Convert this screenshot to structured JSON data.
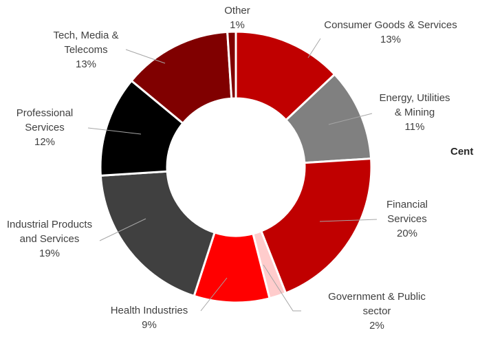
{
  "chart_data": {
    "type": "donut",
    "categories": [
      "Consumer Goods & Services",
      "Energy, Utilities & Mining",
      "Financial Services",
      "Government & Public sector",
      "Health Industries",
      "Industrial Products and Services",
      "Professional Services",
      "Tech, Media & Telecoms",
      "Other"
    ],
    "values": [
      13,
      11,
      20,
      2,
      9,
      19,
      12,
      13,
      1
    ],
    "value_labels": [
      "13%",
      "11%",
      "20%",
      "2%",
      "9%",
      "19%",
      "12%",
      "13%",
      "1%"
    ],
    "colors": [
      "#c00000",
      "#808080",
      "#c00000",
      "#ffcccc",
      "#ff0000",
      "#404040",
      "#000000",
      "#800000",
      "#800000"
    ],
    "annotation": "Cent"
  }
}
